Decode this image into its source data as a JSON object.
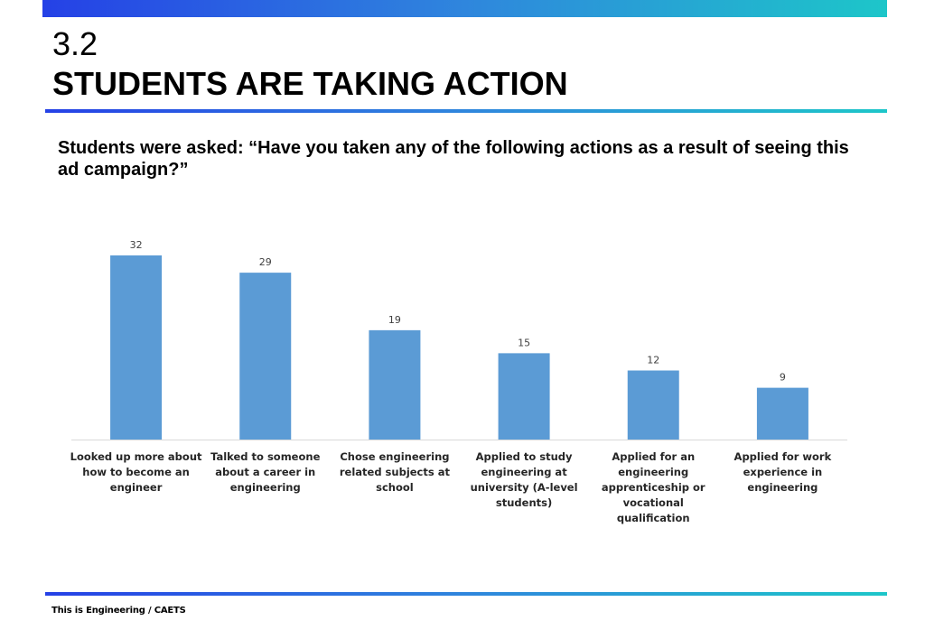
{
  "header": {
    "section_number": "3.2",
    "title": "STUDENTS ARE TAKING ACTION"
  },
  "question": "Students were asked: “Have you taken any of the following actions as a result of seeing this ad campaign?”",
  "chart_data": {
    "type": "bar",
    "title": "",
    "xlabel": "",
    "ylabel": "",
    "categories": [
      "Looked up more about how to become an engineer",
      "Talked to someone about a career in engineering",
      "Chose engineering related subjects at school",
      "Applied to study engineering at university (A-level students)",
      "Applied for an engineering apprenticeship or vocational qualification",
      "Applied for work experience in engineering"
    ],
    "category_lines": [
      [
        "Looked up more about",
        "how to become an",
        "engineer"
      ],
      [
        "Talked to someone",
        "about a career in",
        "engineering"
      ],
      [
        "Chose engineering",
        "related subjects at",
        "school"
      ],
      [
        "Applied to study",
        "engineering at",
        "university (A-level",
        "students)"
      ],
      [
        "Applied for an",
        "engineering",
        "apprenticeship or",
        "vocational",
        "qualification"
      ],
      [
        "Applied for work",
        "experience in",
        "engineering"
      ]
    ],
    "values": [
      32,
      29,
      19,
      15,
      12,
      9
    ],
    "ylim": [
      0,
      32
    ],
    "grid": false,
    "legend": "none",
    "bar_color": "#5b9bd5",
    "data_labels": true
  },
  "footer": "This is Engineering / CAETS"
}
